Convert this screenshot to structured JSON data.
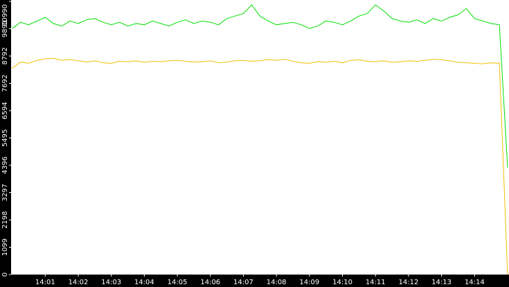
{
  "chart_data": {
    "type": "line",
    "categories": [
      null,
      null,
      null,
      null,
      "14:01",
      null,
      null,
      null,
      "14:02",
      null,
      null,
      null,
      "14:03",
      null,
      null,
      null,
      "14:04",
      null,
      null,
      null,
      "14:05",
      null,
      null,
      null,
      "14:06",
      null,
      null,
      null,
      "14:07",
      null,
      null,
      null,
      "14:08",
      null,
      null,
      null,
      "14:09",
      null,
      null,
      null,
      "14:10",
      null,
      null,
      null,
      "14:11",
      null,
      null,
      null,
      "14:12",
      null,
      null,
      null,
      "14:13",
      null,
      null,
      null,
      "14:14",
      null,
      null,
      null,
      null
    ],
    "series": [
      {
        "color": "#00e000",
        "values": [
          9900,
          10150,
          10050,
          10200,
          10350,
          10100,
          10000,
          10200,
          10100,
          10250,
          10300,
          10150,
          10050,
          10150,
          10000,
          10100,
          10050,
          10200,
          10100,
          10000,
          10150,
          10250,
          10100,
          10200,
          10150,
          10050,
          10300,
          10400,
          10500,
          10850,
          10400,
          10200,
          10050,
          10100,
          10150,
          10050,
          9900,
          10000,
          10200,
          10150,
          10050,
          10200,
          10400,
          10500,
          10850,
          10600,
          10300,
          10200,
          10150,
          10250,
          10100,
          10300,
          10200,
          10350,
          10450,
          10700,
          10300,
          10200,
          10100,
          10050,
          4300
        ]
      },
      {
        "color": "#f0c000",
        "values": [
          8300,
          8550,
          8500,
          8620,
          8680,
          8700,
          8620,
          8650,
          8600,
          8550,
          8600,
          8520,
          8500,
          8580,
          8560,
          8600,
          8540,
          8580,
          8560,
          8600,
          8620,
          8580,
          8550,
          8560,
          8600,
          8520,
          8550,
          8600,
          8620,
          8580,
          8600,
          8650,
          8620,
          8660,
          8580,
          8520,
          8500,
          8560,
          8540,
          8580,
          8520,
          8620,
          8640,
          8580,
          8560,
          8600,
          8540,
          8560,
          8600,
          8580,
          8620,
          8660,
          8640,
          8600,
          8540,
          8520,
          8500,
          8480,
          8520,
          8500,
          0
        ]
      }
    ],
    "ylim": [
      0,
      10990
    ],
    "yticks": [
      0,
      1099,
      2198,
      3297,
      4396,
      5495,
      6594,
      7692,
      8792,
      9891,
      10990
    ]
  }
}
